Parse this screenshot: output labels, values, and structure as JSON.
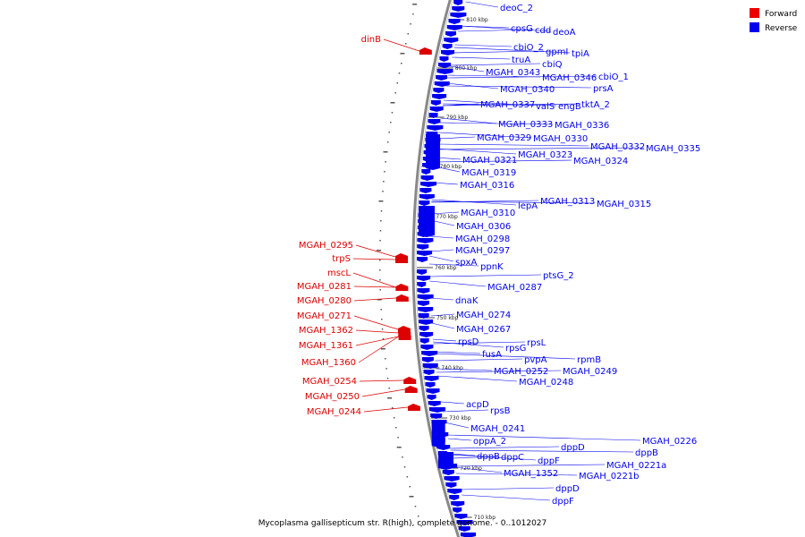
{
  "title": "Mycoplasma gallisepticum str. R(high), complete genome. - 0..1012027",
  "colors": {
    "forward": "#dd0000",
    "reverse": "#0000ee",
    "backbone": "#888888",
    "dots": "#555555"
  },
  "legend": [
    {
      "label": "Forward",
      "color": "#ee0000"
    },
    {
      "label": "Reverse",
      "color": "#0000ee"
    }
  ],
  "ticks": [
    "810 kbp",
    "800 kbp",
    "790 kbp",
    "780 kbp",
    "770 kbp",
    "760 kbp",
    "750 kbp",
    "740 kbp",
    "730 kbp",
    "720 kbp",
    "710 kbp"
  ],
  "forward_labels": [
    "dinB",
    "MGAH_0295",
    "trpS",
    "mscL",
    "MGAH_0281",
    "MGAH_0280",
    "MGAH_0271",
    "MGAH_1362",
    "MGAH_1361",
    "MGAH_1360",
    "MGAH_0254",
    "MGAH_0250",
    "MGAH_0244"
  ],
  "reverse_labels": [
    "deoC_2",
    "cpsG",
    "cdd",
    "deoA",
    "cbiO_2",
    "gpmI",
    "tpiA",
    "truA",
    "cbiQ",
    "MGAH_0343",
    "MGAH_0346",
    "cbiO_1",
    "MGAH_0340",
    "prsA",
    "MGAH_0337",
    "valS",
    "engB",
    "tktA_2",
    "MGAH_0333",
    "MGAH_0336",
    "MGAH_0329",
    "MGAH_0330",
    "MGAH_0332",
    "MGAH_0335",
    "MGAH_0323",
    "MGAH_0321",
    "MGAH_0324",
    "MGAH_0319",
    "MGAH_0316",
    "MGAH_0313",
    "lepA",
    "MGAH_0315",
    "MGAH_0310",
    "MGAH_0306",
    "MGAH_0298",
    "MGAH_0297",
    "spxA",
    "ppnK",
    "ptsG_2",
    "MGAH_0287",
    "dnaK",
    "MGAH_0274",
    "MGAH_0267",
    "rpsD",
    "rpsL",
    "rpsG",
    "fusA",
    "pvpA",
    "rpmB",
    "MGAH_0252",
    "MGAH_0249",
    "MGAH_0248",
    "acpD",
    "rpsB",
    "MGAH_0241",
    "oppA_2",
    "dppD",
    "MGAH_0226",
    "dppB",
    "dppC",
    "dppF",
    "dppB",
    "MGAH_0221a",
    "MGAH_1352",
    "MGAH_0221b",
    "dppD",
    "dppF"
  ]
}
